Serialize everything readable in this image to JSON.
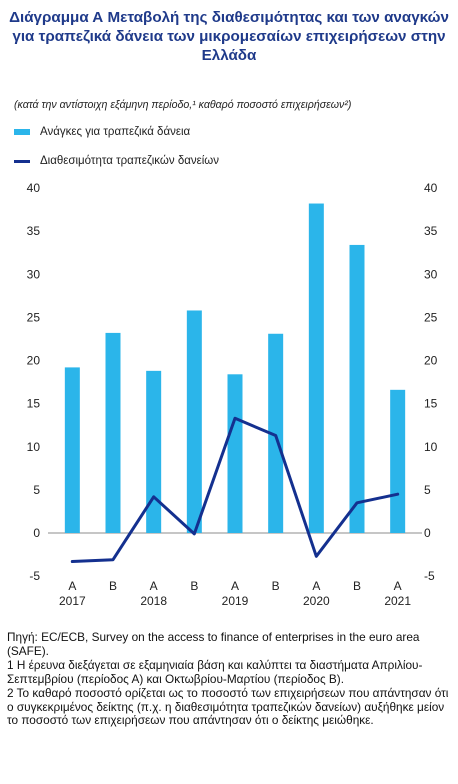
{
  "title": "Διάγραμμα Α Μεταβολή της διαθεσιμότητας και των αναγκών για τραπεζικά δάνεια των μικρομεσαίων επιχειρήσεων στην Ελλάδα",
  "subtitle": "(κατά την αντίστοιχη εξάμηνη περίοδο,¹ καθαρό ποσοστό επιχειρήσεων²)",
  "legend": {
    "bars": "Ανάγκες για τραπεζικά δάνεια",
    "line": "Διαθεσιμότητα τραπεζικών δανείων"
  },
  "chart_data": {
    "type": "bar",
    "categories": [
      "A",
      "B",
      "A",
      "B",
      "A",
      "B",
      "A",
      "B",
      "A"
    ],
    "year_labels": [
      "2017",
      "2018",
      "2019",
      "2020",
      "2021"
    ],
    "series": [
      {
        "name": "Ανάγκες για τραπεζικά δάνεια",
        "type": "bar",
        "color": "#2bb5ea",
        "values": [
          19.2,
          23.2,
          18.8,
          25.8,
          18.4,
          23.1,
          38.2,
          33.4,
          16.6
        ]
      },
      {
        "name": "Διαθεσιμότητα τραπεζικών δανείων",
        "type": "line",
        "color": "#14308f",
        "values": [
          -3.3,
          -3.1,
          4.2,
          -0.1,
          13.3,
          11.3,
          -2.7,
          3.5,
          4.5
        ]
      }
    ],
    "ylim": [
      -5,
      40
    ],
    "yticks": [
      -5,
      0,
      5,
      10,
      15,
      20,
      25,
      30,
      35,
      40
    ],
    "ytick_labels": [
      "-5",
      "0",
      "5",
      "10",
      "15",
      "20",
      "25",
      "30",
      "35",
      "40"
    ],
    "dual_axis_labels": true,
    "grid": false
  },
  "source": {
    "line1": "Πηγή: EC/ECB, Survey on the access to finance of enterprises in the euro area (SAFE).",
    "note1": "1 Η έρευνα διεξάγεται σε εξαμηνιαία βάση και καλύπτει τα διαστήματα Απριλίου-Σεπτεμβρίου (περίοδος Α) και Οκτωβρίου-Μαρτίου (περίοδος Β).",
    "note2": "2 Το καθαρό ποσοστό ορίζεται ως το ποσοστό των επιχειρήσεων που απάντησαν ότι ο συγκεκριμένος δείκτης (π.χ. η διαθεσιμότητα τραπεζικών δανείων) αυξήθηκε μείον το ποσοστό των επιχειρήσεων που απάντησαν ότι ο δείκτης μειώθηκε."
  }
}
